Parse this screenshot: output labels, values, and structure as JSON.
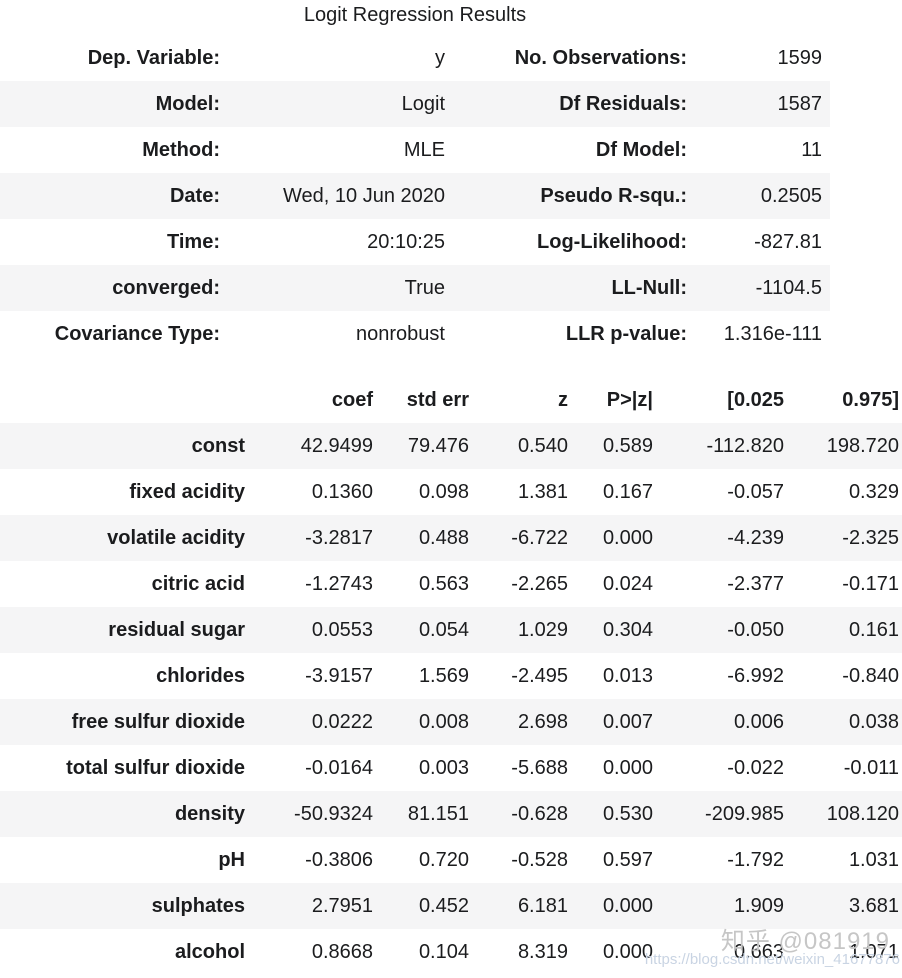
{
  "title": "Logit Regression Results",
  "info_table": {
    "rows": [
      {
        "label1": "Dep. Variable:",
        "value1": "y",
        "label2": "No. Observations:",
        "value2": "1599"
      },
      {
        "label1": "Model:",
        "value1": "Logit",
        "label2": "Df Residuals:",
        "value2": "1587"
      },
      {
        "label1": "Method:",
        "value1": "MLE",
        "label2": "Df Model:",
        "value2": "11"
      },
      {
        "label1": "Date:",
        "value1": "Wed, 10 Jun 2020",
        "label2": "Pseudo R-squ.:",
        "value2": "0.2505"
      },
      {
        "label1": "Time:",
        "value1": "20:10:25",
        "label2": "Log-Likelihood:",
        "value2": "-827.81"
      },
      {
        "label1": "converged:",
        "value1": "True",
        "label2": "LL-Null:",
        "value2": "-1104.5"
      },
      {
        "label1": "Covariance Type:",
        "value1": "nonrobust",
        "label2": "LLR p-value:",
        "value2": "1.316e-111"
      }
    ]
  },
  "coef_table": {
    "headers": {
      "name": "",
      "coef": "coef",
      "std_err": "std err",
      "z": "z",
      "p": "P>|z|",
      "ci_low": "[0.025",
      "ci_high": "0.975]"
    },
    "rows": [
      {
        "name": "const",
        "coef": "42.9499",
        "std_err": "79.476",
        "z": "0.540",
        "p": "0.589",
        "ci_low": "-112.820",
        "ci_high": "198.720"
      },
      {
        "name": "fixed acidity",
        "coef": "0.1360",
        "std_err": "0.098",
        "z": "1.381",
        "p": "0.167",
        "ci_low": "-0.057",
        "ci_high": "0.329"
      },
      {
        "name": "volatile acidity",
        "coef": "-3.2817",
        "std_err": "0.488",
        "z": "-6.722",
        "p": "0.000",
        "ci_low": "-4.239",
        "ci_high": "-2.325"
      },
      {
        "name": "citric acid",
        "coef": "-1.2743",
        "std_err": "0.563",
        "z": "-2.265",
        "p": "0.024",
        "ci_low": "-2.377",
        "ci_high": "-0.171"
      },
      {
        "name": "residual sugar",
        "coef": "0.0553",
        "std_err": "0.054",
        "z": "1.029",
        "p": "0.304",
        "ci_low": "-0.050",
        "ci_high": "0.161"
      },
      {
        "name": "chlorides",
        "coef": "-3.9157",
        "std_err": "1.569",
        "z": "-2.495",
        "p": "0.013",
        "ci_low": "-6.992",
        "ci_high": "-0.840"
      },
      {
        "name": "free sulfur dioxide",
        "coef": "0.0222",
        "std_err": "0.008",
        "z": "2.698",
        "p": "0.007",
        "ci_low": "0.006",
        "ci_high": "0.038"
      },
      {
        "name": "total sulfur dioxide",
        "coef": "-0.0164",
        "std_err": "0.003",
        "z": "-5.688",
        "p": "0.000",
        "ci_low": "-0.022",
        "ci_high": "-0.011"
      },
      {
        "name": "density",
        "coef": "-50.9324",
        "std_err": "81.151",
        "z": "-0.628",
        "p": "0.530",
        "ci_low": "-209.985",
        "ci_high": "108.120"
      },
      {
        "name": "pH",
        "coef": "-0.3806",
        "std_err": "0.720",
        "z": "-0.528",
        "p": "0.597",
        "ci_low": "-1.792",
        "ci_high": "1.031"
      },
      {
        "name": "sulphates",
        "coef": "2.7951",
        "std_err": "0.452",
        "z": "6.181",
        "p": "0.000",
        "ci_low": "1.909",
        "ci_high": "3.681"
      },
      {
        "name": "alcohol",
        "coef": "0.8668",
        "std_err": "0.104",
        "z": "8.319",
        "p": "0.000",
        "ci_low": "0.663",
        "ci_high": "1.071"
      }
    ]
  },
  "watermark": {
    "zhihu": "知乎 @081919",
    "url": "https://blog.csdn.net/weixin_41677876"
  },
  "colors": {
    "row_alt": "#f5f5f6",
    "text": "#1b1c1e",
    "watermark_gray": "#c6c6c6",
    "watermark_url": "#c9d4e3"
  }
}
